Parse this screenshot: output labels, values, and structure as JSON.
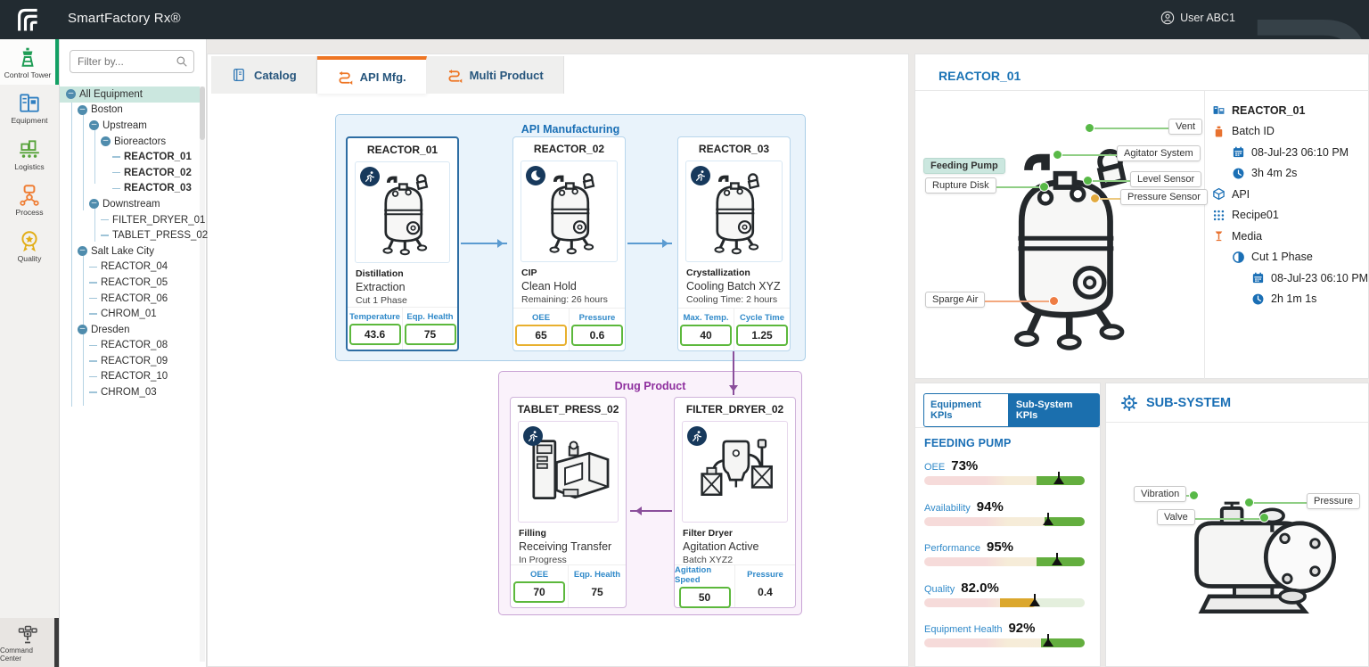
{
  "header": {
    "app_title": "SmartFactory Rx®",
    "user_label": "User ABC1"
  },
  "nav_rail": {
    "items": [
      {
        "label": "Control Tower",
        "active": true
      },
      {
        "label": "Equipment",
        "active": false
      },
      {
        "label": "Logistics",
        "active": false
      },
      {
        "label": "Process",
        "active": false
      },
      {
        "label": "Quality",
        "active": false
      }
    ],
    "bottom_item": {
      "label": "Command Center"
    }
  },
  "equipment_tree": {
    "filter_placeholder": "Filter by...",
    "items": [
      {
        "label": "All Equipment",
        "level": 0,
        "type": "branch",
        "selected": true
      },
      {
        "label": "Boston",
        "level": 1,
        "type": "branch"
      },
      {
        "label": "Upstream",
        "level": 2,
        "type": "branch"
      },
      {
        "label": "Bioreactors",
        "level": 3,
        "type": "branch"
      },
      {
        "label": "REACTOR_01",
        "level": 4,
        "type": "leaf",
        "bold": true
      },
      {
        "label": "REACTOR_02",
        "level": 4,
        "type": "leaf",
        "bold": true
      },
      {
        "label": "REACTOR_03",
        "level": 4,
        "type": "leaf",
        "bold": true
      },
      {
        "label": "Downstream",
        "level": 2,
        "type": "branch"
      },
      {
        "label": "FILTER_DRYER_01",
        "level": 3,
        "type": "leaf"
      },
      {
        "label": "TABLET_PRESS_02",
        "level": 3,
        "type": "leaf"
      },
      {
        "label": "Salt Lake City",
        "level": 1,
        "type": "branch"
      },
      {
        "label": "REACTOR_04",
        "level": 2,
        "type": "leaf"
      },
      {
        "label": "REACTOR_05",
        "level": 2,
        "type": "leaf"
      },
      {
        "label": "REACTOR_06",
        "level": 2,
        "type": "leaf"
      },
      {
        "label": "CHROM_01",
        "level": 2,
        "type": "leaf"
      },
      {
        "label": "Dresden",
        "level": 1,
        "type": "branch"
      },
      {
        "label": "REACTOR_08",
        "level": 2,
        "type": "leaf"
      },
      {
        "label": "REACTOR_09",
        "level": 2,
        "type": "leaf"
      },
      {
        "label": "REACTOR_10",
        "level": 2,
        "type": "leaf"
      },
      {
        "label": "CHROM_03",
        "level": 2,
        "type": "leaf"
      }
    ]
  },
  "tabs": [
    {
      "label": "Catalog",
      "active": false
    },
    {
      "label": "API Mfg.",
      "active": true
    },
    {
      "label": "Multi Product",
      "active": false
    }
  ],
  "flow": {
    "api_group": {
      "title": "API Manufacturing",
      "cards": [
        {
          "name": "REACTOR_01",
          "badge": "running",
          "line1": "Distillation",
          "line2": "Extraction",
          "line3": "Cut 1 Phase",
          "kpis": [
            {
              "label": "Temperature",
              "value": "43.6"
            },
            {
              "label": "Eqp. Health",
              "value": "75"
            }
          ]
        },
        {
          "name": "REACTOR_02",
          "badge": "idle-moon",
          "line1": "CIP",
          "line2": "Clean Hold",
          "line3": "Remaining: 26 hours",
          "kpis": [
            {
              "label": "OEE",
              "value": "65"
            },
            {
              "label": "Pressure",
              "value": "0.6"
            }
          ]
        },
        {
          "name": "REACTOR_03",
          "badge": "running",
          "line1": "Crystallization",
          "line2": "Cooling Batch XYZ",
          "line3": "Cooling Time: 2 hours",
          "kpis": [
            {
              "label": "Max. Temp.",
              "value": "40"
            },
            {
              "label": "Cycle Time",
              "value": "1.25"
            }
          ]
        }
      ]
    },
    "dp_group": {
      "title": "Drug Product",
      "cards": [
        {
          "name": "TABLET_PRESS_02",
          "badge": "running",
          "line1": "Filling",
          "line2": "Receiving Transfer",
          "line3": "In Progress",
          "kpis": [
            {
              "label": "OEE",
              "value": "70"
            },
            {
              "label": "Eqp. Health",
              "value": "75"
            }
          ]
        },
        {
          "name": "FILTER_DRYER_02",
          "badge": "running",
          "line1": "Filter Dryer",
          "line2": "Agitation Active",
          "line3": "Batch XYZ2",
          "kpis": [
            {
              "label": "Agitation Speed",
              "value": "50"
            },
            {
              "label": "Pressure",
              "value": "0.4"
            }
          ]
        }
      ]
    }
  },
  "equipment_detail": {
    "title": "REACTOR_01",
    "callouts": [
      {
        "label": "Vent",
        "status_color": "#58b947"
      },
      {
        "label": "Agitator System",
        "status_color": "#58b947"
      },
      {
        "label": "Level Sensor",
        "status_color": "#58b947"
      },
      {
        "label": "Pressure Sensor",
        "status_color": "#e2aa3f"
      },
      {
        "label": "Feeding Pump",
        "status_color": "#58b947",
        "selected": true
      },
      {
        "label": "Rupture Disk",
        "status_color": "#58b947"
      },
      {
        "label": "Sparge Air",
        "status_color": "#ee7d44"
      }
    ],
    "info": {
      "equipment": "REACTOR_01",
      "batch_label": "Batch ID",
      "batch_date": "08-Jul-23 06:10 PM",
      "batch_duration": "3h 4m 2s",
      "product": "API",
      "recipe": "Recipe01",
      "media": "Media",
      "phase": "Cut 1 Phase",
      "phase_date": "08-Jul-23 06:10 PM",
      "phase_duration": "2h 1m 1s"
    }
  },
  "kpi_panel": {
    "tab_left": "Equipment KPIs",
    "tab_right": "Sub-System KPIs",
    "active_tab": "Sub-System KPIs",
    "heading": "FEEDING PUMP",
    "kpis": [
      {
        "label": "OEE",
        "value": "73%",
        "band_start": 70,
        "band_end": 100,
        "band_color": "#63ae3e",
        "needle": 84
      },
      {
        "label": "Availability",
        "value": "94%",
        "band_start": 75,
        "band_end": 100,
        "band_color": "#63ae3e",
        "needle": 77
      },
      {
        "label": "Performance",
        "value": "95%",
        "band_start": 70,
        "band_end": 100,
        "band_color": "#63ae3e",
        "needle": 83
      },
      {
        "label": "Quality",
        "value": "82.0%",
        "band_start": 47,
        "band_end": 70,
        "band_color": "#dba72d",
        "needle": 69,
        "after_color": "#e4efdd"
      },
      {
        "label": "Equipment Health",
        "value": "92%",
        "band_start": 73,
        "band_end": 100,
        "band_color": "#63ae3e",
        "needle": 77
      }
    ]
  },
  "subsystem_panel": {
    "title": "SUB-SYSTEM",
    "callouts": [
      {
        "label": "Vibration",
        "status_color": "#58b947"
      },
      {
        "label": "Valve",
        "status_color": "#58b947"
      },
      {
        "label": "Pressure",
        "status_color": "#58b947"
      }
    ]
  },
  "colors": {
    "topbar": "#222b31",
    "accent_blue": "#1a6fb5",
    "accent_orange": "#ee7523",
    "group_api_border": "#a9cde7",
    "group_dp_border": "#c9a3d5",
    "kpi_green": "#5cb83c",
    "kpi_amber": "#e8b02e",
    "selected_teal": "#cbe7df"
  }
}
